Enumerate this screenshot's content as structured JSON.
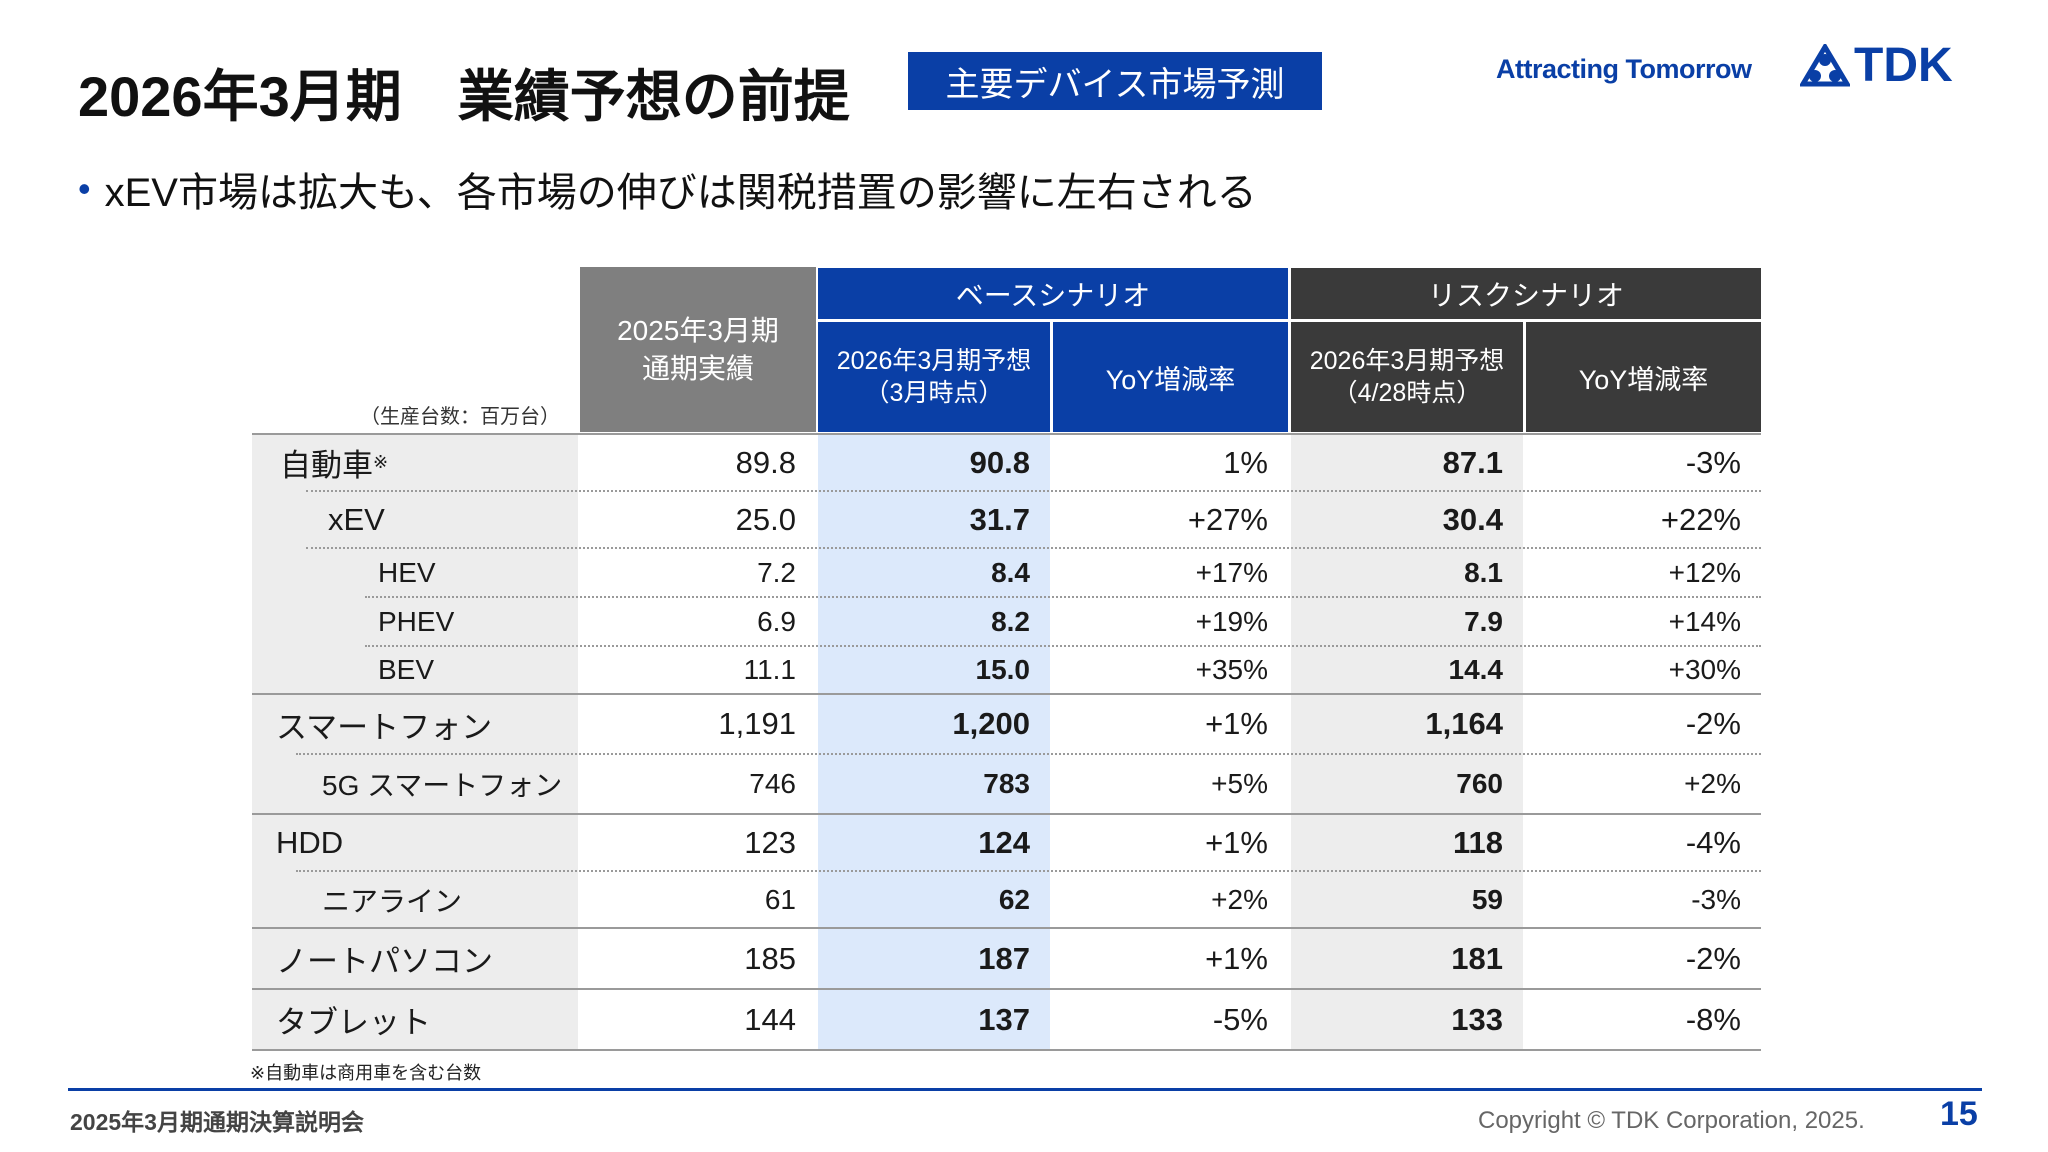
{
  "header": {
    "title": "2026年3月期　業績予想の前提",
    "tag": "主要デバイス市場予測",
    "slogan": "Attracting Tomorrow",
    "logo_text": "TDK"
  },
  "bullet": "xEV市場は拡大も、各市場の伸びは関税措置の影響に左右される",
  "table": {
    "unit_note": "（生産台数：百万台）",
    "col_actual": [
      "2025年3月期",
      "通期実績"
    ],
    "group_base": "ベースシナリオ",
    "group_risk": "リスクシナリオ",
    "base_forecast": [
      "2026年3月期予想",
      "（3月時点）"
    ],
    "risk_forecast": [
      "2026年3月期予想",
      "（4/28時点）"
    ],
    "yoy": "YoY増減率",
    "rows": [
      {
        "label": "自動車",
        "note": "※",
        "actual": "89.8",
        "base": "90.8",
        "base_yoy": "1%",
        "risk": "87.1",
        "risk_yoy": "-3%"
      },
      {
        "label": "xEV",
        "actual": "25.0",
        "base": "31.7",
        "base_yoy": "+27%",
        "risk": "30.4",
        "risk_yoy": "+22%"
      },
      {
        "label": "HEV",
        "actual": "7.2",
        "base": "8.4",
        "base_yoy": "+17%",
        "risk": "8.1",
        "risk_yoy": "+12%"
      },
      {
        "label": "PHEV",
        "actual": "6.9",
        "base": "8.2",
        "base_yoy": "+19%",
        "risk": "7.9",
        "risk_yoy": "+14%"
      },
      {
        "label": "BEV",
        "actual": "11.1",
        "base": "15.0",
        "base_yoy": "+35%",
        "risk": "14.4",
        "risk_yoy": "+30%"
      },
      {
        "label": "スマートフォン",
        "actual": "1,191",
        "base": "1,200",
        "base_yoy": "+1%",
        "risk": "1,164",
        "risk_yoy": "-2%"
      },
      {
        "label": "5G スマートフォン",
        "actual": "746",
        "base": "783",
        "base_yoy": "+5%",
        "risk": "760",
        "risk_yoy": "+2%"
      },
      {
        "label": "HDD",
        "actual": "123",
        "base": "124",
        "base_yoy": "+1%",
        "risk": "118",
        "risk_yoy": "-4%"
      },
      {
        "label": "ニアライン",
        "actual": "61",
        "base": "62",
        "base_yoy": "+2%",
        "risk": "59",
        "risk_yoy": "-3%"
      },
      {
        "label": "ノートパソコン",
        "actual": "185",
        "base": "187",
        "base_yoy": "+1%",
        "risk": "181",
        "risk_yoy": "-2%"
      },
      {
        "label": "タブレット",
        "actual": "144",
        "base": "137",
        "base_yoy": "-5%",
        "risk": "133",
        "risk_yoy": "-8%"
      }
    ],
    "footnote": "※自動車は商用車を含む台数"
  },
  "footer": {
    "event": "2025年3月期通期決算説明会",
    "copyright": "Copyright © TDK Corporation, 2025.",
    "page": "15"
  },
  "colors": {
    "brand": "#0a3fa6",
    "risk": "#3a3a3a",
    "actual": "#7f7f7f",
    "base_fill": "#dce9fb"
  }
}
